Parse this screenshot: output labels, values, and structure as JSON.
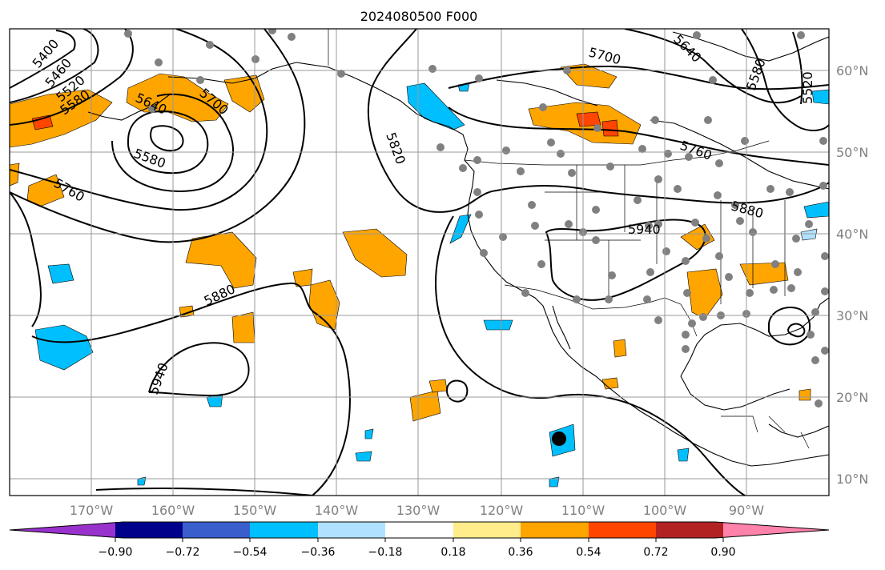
{
  "title": "2024080500 F000",
  "lon_labels": [
    "170°W",
    "160°W",
    "150°W",
    "140°W",
    "130°W",
    "120°W",
    "110°W",
    "100°W",
    "90°W"
  ],
  "lat_labels": [
    "60°N",
    "50°N",
    "40°N",
    "30°N",
    "20°N",
    "10°N"
  ],
  "contour_labels": [
    "5400",
    "5460",
    "5520",
    "5580",
    "5640",
    "5700",
    "5580",
    "5760",
    "5820",
    "5880",
    "5940",
    "5700",
    "5640",
    "5580",
    "5520",
    "5760",
    "5880",
    "5940"
  ],
  "colorbar": {
    "colors": [
      "#9932cc",
      "#00008b",
      "#3a5fcd",
      "#00bfff",
      "#b0e2ff",
      "#ffffff",
      "#ffec8b",
      "#ffa500",
      "#ff4500",
      "#b22222",
      "#ff82ab"
    ],
    "ticks": [
      "−0.90",
      "−0.72",
      "−0.54",
      "−0.36",
      "−0.18",
      "0.18",
      "0.36",
      "0.54",
      "0.72",
      "0.90"
    ]
  },
  "legend_colors": {
    "positive": "#ffa500",
    "strong_positive": "#ff4500",
    "negative": "#00bfff",
    "station": "#808080"
  }
}
